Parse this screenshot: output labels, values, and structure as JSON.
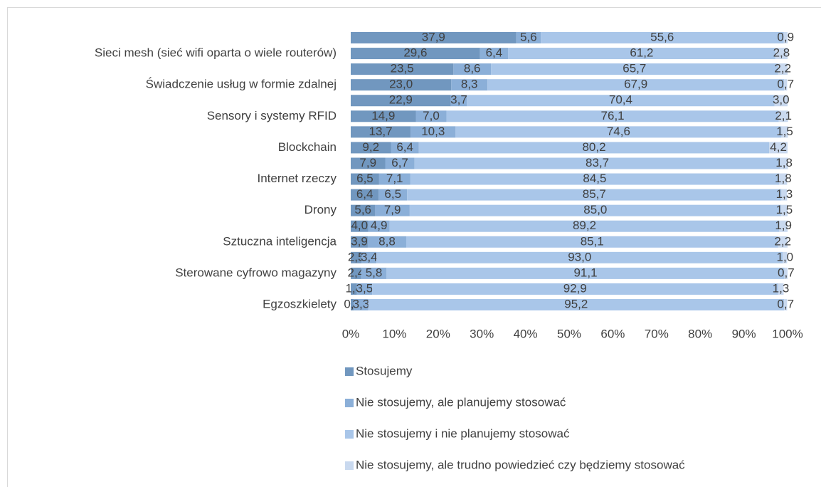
{
  "chart_data": {
    "type": "stacked-barh",
    "categories": [
      null,
      "Sieci mesh (sieć wifi oparta o wiele routerów)",
      null,
      "Świadczenie usług w formie zdalnej",
      null,
      "Sensory i systemy RFID",
      null,
      "Blockchain",
      null,
      "Internet rzeczy",
      null,
      "Drony",
      null,
      "Sztuczna inteligencja",
      null,
      "Sterowane cyfrowo magazyny",
      null,
      "Egzoszkielety"
    ],
    "series": [
      {
        "name": "Stosujemy",
        "color": "#7197bf",
        "values": [
          37.9,
          29.6,
          23.5,
          23.0,
          22.9,
          14.9,
          13.7,
          9.2,
          7.9,
          6.5,
          6.4,
          5.6,
          4.0,
          3.9,
          2.5,
          2.4,
          1.4,
          0.7
        ],
        "value_labels": [
          "37,9",
          "29,6",
          "23,5",
          "23,0",
          "22,9",
          "14,9",
          "13,7",
          "9,2",
          "7,9",
          "6,5",
          "6,4",
          "5,6",
          "4,0",
          "3,9",
          "2,5",
          "2,4",
          "1,4",
          "0,7"
        ]
      },
      {
        "name": "Nie stosujemy, ale planujemy stosować",
        "color": "#8bafd8",
        "values": [
          5.6,
          6.4,
          8.6,
          8.3,
          3.7,
          7.0,
          10.3,
          6.4,
          6.7,
          7.1,
          6.5,
          7.9,
          4.9,
          8.8,
          3.4,
          5.8,
          3.5,
          3.3
        ],
        "value_labels": [
          "5,6",
          "6,4",
          "8,6",
          "8,3",
          "3,7",
          "7,0",
          "10,3",
          "6,4",
          "6,7",
          "7,1",
          "6,5",
          "7,9",
          "4,9",
          "8,8",
          "3,4",
          "5,8",
          "3,5",
          "3,3"
        ]
      },
      {
        "name": "Nie stosujemy i nie planujemy stosować",
        "color": "#a9c6e9",
        "values": [
          55.6,
          61.2,
          65.7,
          67.9,
          70.4,
          76.1,
          74.6,
          80.2,
          83.7,
          84.5,
          85.7,
          85.0,
          89.2,
          85.1,
          93.0,
          91.1,
          92.9,
          95.2
        ],
        "value_labels": [
          "55,6",
          "61,2",
          "65,7",
          "67,9",
          "70,4",
          "76,1",
          "74,6",
          "80,2",
          "83,7",
          "84,5",
          "85,7",
          "85,0",
          "89,2",
          "85,1",
          "93,0",
          "91,1",
          "92,9",
          "95,2"
        ]
      },
      {
        "name": "Nie stosujemy, ale trudno powiedzieć czy będziemy stosować",
        "color": "#c9d9ef",
        "values": [
          0.9,
          2.8,
          2.2,
          0.7,
          3.0,
          2.1,
          1.5,
          4.2,
          1.8,
          1.8,
          1.3,
          1.5,
          1.9,
          2.2,
          1.0,
          0.7,
          1.3,
          0.7
        ],
        "value_labels": [
          "0,9",
          "2,8",
          "2,2",
          "0,7",
          "3,0",
          "2,1",
          "1,5",
          "4,2",
          "1,8",
          "1,8",
          "1,3",
          "1,5",
          "1,9",
          "2,2",
          "1,0",
          "0,7",
          "1,3",
          "0,7"
        ]
      }
    ],
    "xlim": [
      0,
      100
    ],
    "xticks": [
      {
        "value": 0,
        "label": "0%"
      },
      {
        "value": 10,
        "label": "10%"
      },
      {
        "value": 20,
        "label": "20%"
      },
      {
        "value": 30,
        "label": "30%"
      },
      {
        "value": 40,
        "label": "40%"
      },
      {
        "value": 50,
        "label": "50%"
      },
      {
        "value": 60,
        "label": "60%"
      },
      {
        "value": 70,
        "label": "70%"
      },
      {
        "value": 80,
        "label": "80%"
      },
      {
        "value": 90,
        "label": "90%"
      },
      {
        "value": 100,
        "label": "100%"
      }
    ],
    "legend": "bottom"
  }
}
